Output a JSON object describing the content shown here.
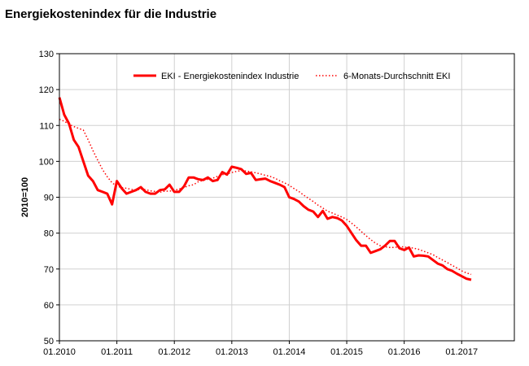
{
  "chart_title": "Energiekostenindex für die Industrie",
  "chart_data": {
    "type": "line",
    "title": "Energiekostenindex für die Industrie",
    "xlabel": "",
    "ylabel": "2010=100",
    "ylim": [
      50,
      130
    ],
    "yticks": [
      50,
      60,
      70,
      80,
      90,
      100,
      110,
      120,
      130
    ],
    "xlim": [
      "2010-01",
      "2017-12"
    ],
    "xtick_labels": [
      "01.2010",
      "01.2011",
      "01.2012",
      "01.2013",
      "01.2014",
      "01.2015",
      "01.2016",
      "01.2017"
    ],
    "grid": true,
    "legend_position": "top-right",
    "x": [
      "2010-01",
      "2010-02",
      "2010-03",
      "2010-04",
      "2010-05",
      "2010-06",
      "2010-07",
      "2010-08",
      "2010-09",
      "2010-10",
      "2010-11",
      "2010-12",
      "2011-01",
      "2011-02",
      "2011-03",
      "2011-04",
      "2011-05",
      "2011-06",
      "2011-07",
      "2011-08",
      "2011-09",
      "2011-10",
      "2011-11",
      "2011-12",
      "2012-01",
      "2012-02",
      "2012-03",
      "2012-04",
      "2012-05",
      "2012-06",
      "2012-07",
      "2012-08",
      "2012-09",
      "2012-10",
      "2012-11",
      "2012-12",
      "2013-01",
      "2013-02",
      "2013-03",
      "2013-04",
      "2013-05",
      "2013-06",
      "2013-07",
      "2013-08",
      "2013-09",
      "2013-10",
      "2013-11",
      "2013-12",
      "2014-01",
      "2014-02",
      "2014-03",
      "2014-04",
      "2014-05",
      "2014-06",
      "2014-07",
      "2014-08",
      "2014-09",
      "2014-10",
      "2014-11",
      "2014-12",
      "2015-01",
      "2015-02",
      "2015-03",
      "2015-04",
      "2015-05",
      "2015-06",
      "2015-07",
      "2015-08",
      "2015-09",
      "2015-10",
      "2015-11",
      "2015-12",
      "2016-01",
      "2016-02",
      "2016-03",
      "2016-04",
      "2016-05",
      "2016-06",
      "2016-07",
      "2016-08",
      "2016-09",
      "2016-10",
      "2016-11",
      "2016-12",
      "2017-01",
      "2017-02",
      "2017-03"
    ],
    "series": [
      {
        "name": "EKI - Energiekostenindex Industrie",
        "color": "#ff0000",
        "style": "solid",
        "values": [
          117.8,
          113,
          110.5,
          106,
          104,
          100,
          96,
          94.5,
          92,
          91.5,
          91,
          88,
          94.5,
          92.5,
          91,
          91.5,
          92,
          92.8,
          91.5,
          91,
          91,
          92,
          92.2,
          93.5,
          91.5,
          91.5,
          93,
          95.5,
          95.5,
          95,
          94.8,
          95.5,
          94.5,
          94.8,
          97,
          96.3,
          98.5,
          98.2,
          97.8,
          96.5,
          96.8,
          94.8,
          95,
          95.2,
          94.5,
          94,
          93.5,
          92.8,
          90,
          89.5,
          88.8,
          87.5,
          86.5,
          86,
          84.5,
          86.2,
          84,
          84.5,
          84.2,
          83.5,
          82,
          80,
          78,
          76.5,
          76.5,
          74.5,
          75,
          75.5,
          76.5,
          77.8,
          77.8,
          75.8,
          75.3,
          76,
          73.5,
          73.8,
          73.7,
          73.5,
          72.5,
          71.5,
          71,
          70,
          69.5,
          68.7,
          68,
          67.3,
          67
        ]
      },
      {
        "name": "6-Monats-Durchschnitt EKI",
        "color": "#ff0000",
        "style": "dotted",
        "values": [
          111.7,
          111.2,
          110.3,
          109.7,
          109.2,
          108.7,
          106,
          103,
          100.3,
          97.7,
          95.7,
          94,
          93.1,
          92.7,
          92.5,
          92.2,
          91.9,
          92.3,
          92.1,
          91.8,
          91.6,
          91.4,
          91.7,
          91.7,
          91.9,
          92.3,
          92.7,
          93.2,
          93.5,
          94.3,
          94.7,
          95,
          95.3,
          95.8,
          96.3,
          96.5,
          96.9,
          97.2,
          97.4,
          97.3,
          97.1,
          96.8,
          96.5,
          96.1,
          95.8,
          95.3,
          94.6,
          94,
          93.3,
          92.4,
          91.6,
          90.6,
          89.7,
          88.8,
          87.8,
          87,
          86.1,
          85.6,
          85,
          84.5,
          83.8,
          82.8,
          81.7,
          80.5,
          79.3,
          78.2,
          77.2,
          76.5,
          76.2,
          76,
          76,
          76.3,
          76.1,
          76,
          75.8,
          75.5,
          75,
          74.5,
          74,
          73.2,
          72.5,
          71.8,
          71,
          70.3,
          69.5,
          68.9,
          68.5
        ]
      }
    ]
  }
}
